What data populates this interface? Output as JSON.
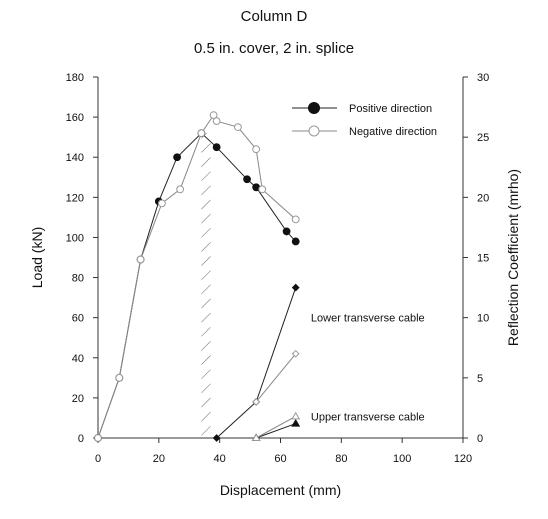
{
  "chart_data": {
    "type": "line",
    "title": "Column D",
    "subtitle": "0.5 in. cover, 2 in. splice",
    "xlabel": "Displacement (mm)",
    "ylabel": "Load (kN)",
    "y2label": "Reflection Coefficient (mrho)",
    "xlim": [
      0,
      120
    ],
    "ylim": [
      0,
      180
    ],
    "y2lim": [
      0,
      30
    ],
    "xticks": [
      "0",
      "20",
      "40",
      "60",
      "80",
      "100",
      "120"
    ],
    "yticks": [
      "0",
      "20",
      "40",
      "60",
      "80",
      "100",
      "120",
      "140",
      "160",
      "180"
    ],
    "y2ticks": [
      "0",
      "5",
      "10",
      "15",
      "20",
      "25",
      "30"
    ],
    "grid": false,
    "legend_position": "top-right",
    "series": [
      {
        "name": "Positive direction",
        "marker": "filled-circle",
        "axis": "left",
        "x": [
          0,
          7,
          14,
          20,
          26,
          34,
          39,
          49,
          52,
          62,
          65
        ],
        "y": [
          0,
          30,
          89,
          118,
          140,
          152,
          145,
          129,
          125,
          103,
          98
        ]
      },
      {
        "name": "Negative direction",
        "marker": "open-circle",
        "axis": "left",
        "x": [
          0,
          7,
          14,
          21,
          27,
          34,
          38,
          39,
          46,
          52,
          54,
          65
        ],
        "y": [
          0,
          30,
          89,
          117,
          124,
          152,
          161,
          158,
          155,
          144,
          124,
          109
        ]
      }
    ],
    "cable_series": [
      {
        "label": "Lower transverse cable",
        "marker": "filled-diamond",
        "axis": "right",
        "x": [
          39,
          52,
          65
        ],
        "y": [
          0,
          3,
          12.5
        ]
      },
      {
        "label": "Lower transverse cable",
        "marker": "open-diamond",
        "axis": "right",
        "x": [
          52,
          65
        ],
        "y": [
          3,
          7
        ]
      },
      {
        "label": "Upper transverse cable",
        "marker": "filled-triangle",
        "axis": "right",
        "x": [
          52,
          65
        ],
        "y": [
          0,
          1.2
        ]
      },
      {
        "label": "Upper transverse cable",
        "marker": "open-triangle",
        "axis": "right",
        "x": [
          52,
          65
        ],
        "y": [
          0,
          1.8
        ]
      }
    ],
    "annotations": [
      {
        "text": "Lower transverse cable",
        "x": 70,
        "y2": 10
      },
      {
        "text": "Upper transverse cable",
        "x": 70,
        "y2": 1.8
      }
    ],
    "hatched_band": {
      "x": [
        34,
        37
      ],
      "y": [
        0,
        152
      ]
    }
  }
}
